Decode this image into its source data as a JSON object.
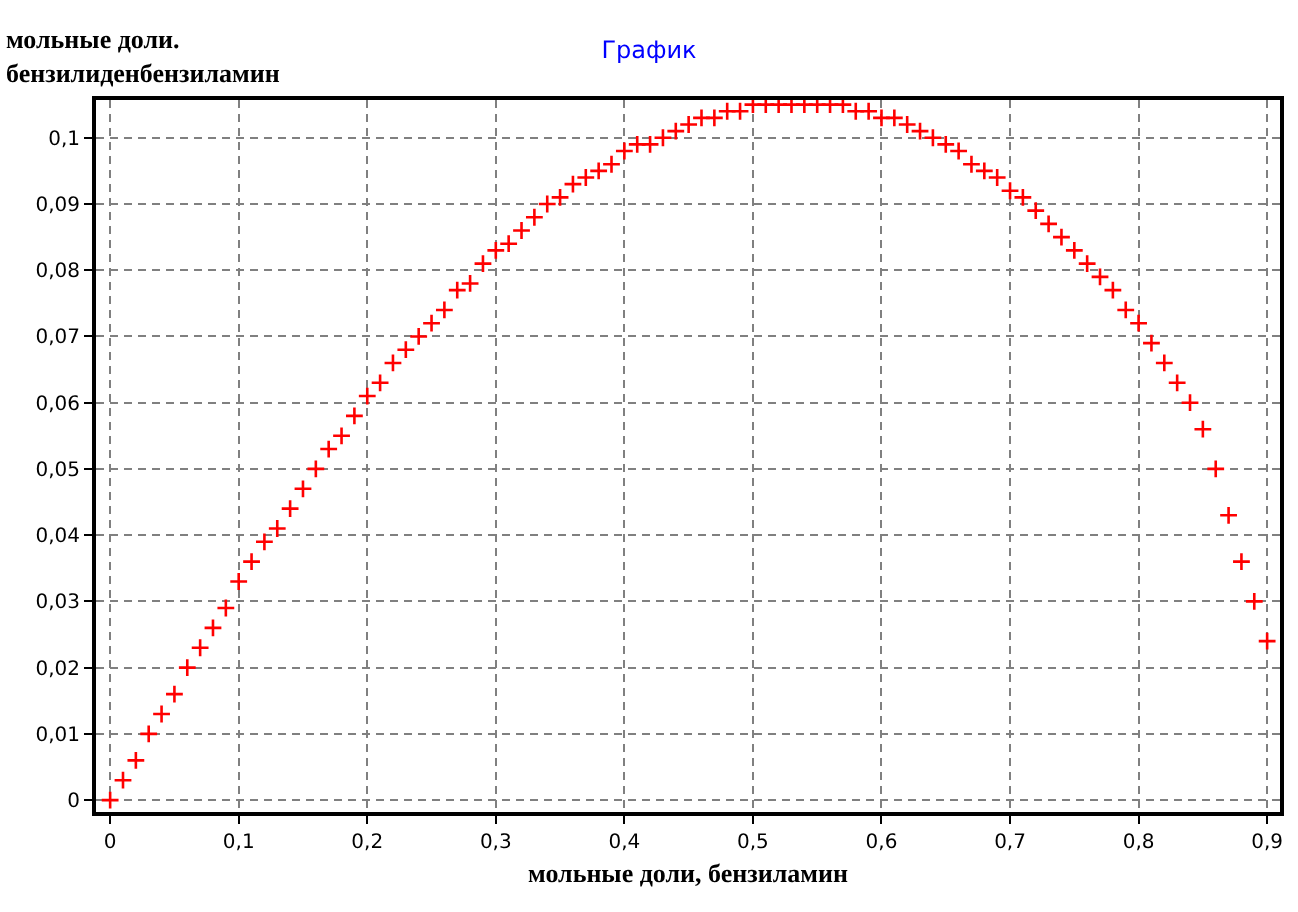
{
  "chart_data": {
    "type": "scatter",
    "title": "График",
    "xlabel": "мольные доли, бензиламин",
    "ylabel": "мольные доли.\nбензилиденбензиламин",
    "x": [
      0,
      0.01,
      0.02,
      0.03,
      0.04,
      0.05,
      0.06,
      0.07,
      0.08,
      0.09,
      0.1,
      0.11,
      0.12,
      0.13,
      0.14,
      0.15,
      0.16,
      0.17,
      0.18,
      0.19,
      0.2,
      0.21,
      0.22,
      0.23,
      0.24,
      0.25,
      0.26,
      0.27,
      0.28,
      0.29,
      0.3,
      0.31,
      0.32,
      0.33,
      0.34,
      0.35,
      0.36,
      0.37,
      0.38,
      0.39,
      0.4,
      0.41,
      0.42,
      0.43,
      0.44,
      0.45,
      0.46,
      0.47,
      0.48,
      0.49,
      0.5,
      0.51,
      0.52,
      0.53,
      0.54,
      0.55,
      0.56,
      0.57,
      0.58,
      0.59,
      0.6,
      0.61,
      0.62,
      0.63,
      0.64,
      0.65,
      0.66,
      0.67,
      0.68,
      0.69,
      0.7,
      0.71,
      0.72,
      0.73,
      0.74,
      0.75,
      0.76,
      0.77,
      0.78,
      0.79,
      0.8,
      0.81,
      0.82,
      0.83,
      0.84,
      0.85,
      0.86,
      0.87,
      0.88,
      0.89,
      0.9
    ],
    "series": [
      {
        "color": "#ff0000",
        "values": [
          0,
          0.003,
          0.006,
          0.01,
          0.013,
          0.016,
          0.02,
          0.023,
          0.026,
          0.029,
          0.033,
          0.036,
          0.039,
          0.041,
          0.044,
          0.047,
          0.05,
          0.053,
          0.055,
          0.058,
          0.061,
          0.063,
          0.066,
          0.068,
          0.07,
          0.072,
          0.074,
          0.077,
          0.078,
          0.081,
          0.083,
          0.084,
          0.086,
          0.088,
          0.09,
          0.091,
          0.093,
          0.094,
          0.095,
          0.096,
          0.098,
          0.099,
          0.099,
          0.1,
          0.101,
          0.102,
          0.103,
          0.103,
          0.104,
          0.104,
          0.105,
          0.105,
          0.105,
          0.105,
          0.105,
          0.105,
          0.105,
          0.105,
          0.104,
          0.104,
          0.103,
          0.103,
          0.102,
          0.101,
          0.1,
          0.099,
          0.098,
          0.096,
          0.095,
          0.094,
          0.092,
          0.091,
          0.089,
          0.087,
          0.085,
          0.083,
          0.081,
          0.079,
          0.077,
          0.074,
          0.072,
          0.069,
          0.066,
          0.063,
          0.06,
          0.056,
          0.05,
          0.043,
          0.036,
          0.03,
          0.024
        ]
      }
    ],
    "xlim": [
      -0.011,
      0.91
    ],
    "ylim": [
      -0.0018,
      0.1057
    ],
    "xticks": [
      {
        "value": 0,
        "label": "0"
      },
      {
        "value": 0.1,
        "label": "0,1"
      },
      {
        "value": 0.2,
        "label": "0,2"
      },
      {
        "value": 0.3,
        "label": "0,3"
      },
      {
        "value": 0.4,
        "label": "0,4"
      },
      {
        "value": 0.5,
        "label": "0,5"
      },
      {
        "value": 0.6,
        "label": "0,6"
      },
      {
        "value": 0.7,
        "label": "0,7"
      },
      {
        "value": 0.8,
        "label": "0,8"
      },
      {
        "value": 0.9,
        "label": "0,9"
      }
    ],
    "yticks": [
      {
        "value": 0,
        "label": "0"
      },
      {
        "value": 0.01,
        "label": "0,01"
      },
      {
        "value": 0.02,
        "label": "0,02"
      },
      {
        "value": 0.03,
        "label": "0,03"
      },
      {
        "value": 0.04,
        "label": "0,04"
      },
      {
        "value": 0.05,
        "label": "0,05"
      },
      {
        "value": 0.06,
        "label": "0,06"
      },
      {
        "value": 0.07,
        "label": "0,07"
      },
      {
        "value": 0.08,
        "label": "0,08"
      },
      {
        "value": 0.09,
        "label": "0,09"
      },
      {
        "value": 0.1,
        "label": "0,1"
      }
    ],
    "grid": true,
    "marker": "cross"
  }
}
